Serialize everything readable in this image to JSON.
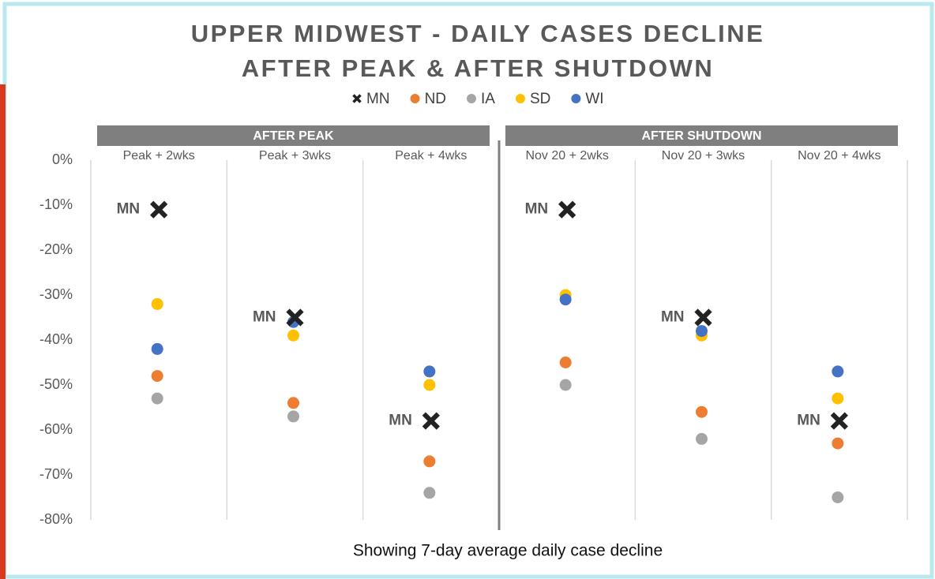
{
  "chart_data": {
    "type": "dot",
    "title": "UPPER MIDWEST - DAILY CASES DECLINE",
    "subtitle": "AFTER PEAK & AFTER SHUTDOWN",
    "caption": "Showing 7-day average daily case decline",
    "groups": [
      "AFTER PEAK",
      "AFTER SHUTDOWN"
    ],
    "categories": [
      "Peak + 2wks",
      "Peak + 3wks",
      "Peak + 4wks",
      "Nov 20 + 2wks",
      "Nov 20 + 3wks",
      "Nov 20 + 4wks"
    ],
    "series": [
      {
        "name": "MN",
        "color": "#222222",
        "marker": "x",
        "values": [
          -11,
          -35,
          -58,
          -11,
          -35,
          -58
        ]
      },
      {
        "name": "ND",
        "color": "#ed7d31",
        "marker": "circle",
        "values": [
          -48,
          -54,
          -67,
          -45,
          -56,
          -63
        ]
      },
      {
        "name": "IA",
        "color": "#a5a5a5",
        "marker": "circle",
        "values": [
          -53,
          -57,
          -74,
          -50,
          -62,
          -75
        ]
      },
      {
        "name": "SD",
        "color": "#ffc000",
        "marker": "circle",
        "values": [
          -32,
          -39,
          -50,
          -30,
          -39,
          -53
        ]
      },
      {
        "name": "WI",
        "color": "#4472c4",
        "marker": "circle",
        "values": [
          -42,
          -36,
          -47,
          -31,
          -38,
          -47
        ]
      }
    ],
    "ylim": [
      -80,
      0
    ],
    "yticks": [
      {
        "value": 0,
        "label": "0%"
      },
      {
        "value": -10,
        "label": "-10%"
      },
      {
        "value": -20,
        "label": "-20%"
      },
      {
        "value": -30,
        "label": "-30%"
      },
      {
        "value": -40,
        "label": "-40%"
      },
      {
        "value": -50,
        "label": "-50%"
      },
      {
        "value": -60,
        "label": "-60%"
      },
      {
        "value": -70,
        "label": "-70%"
      },
      {
        "value": -80,
        "label": "-80%"
      }
    ],
    "legend": "top"
  }
}
